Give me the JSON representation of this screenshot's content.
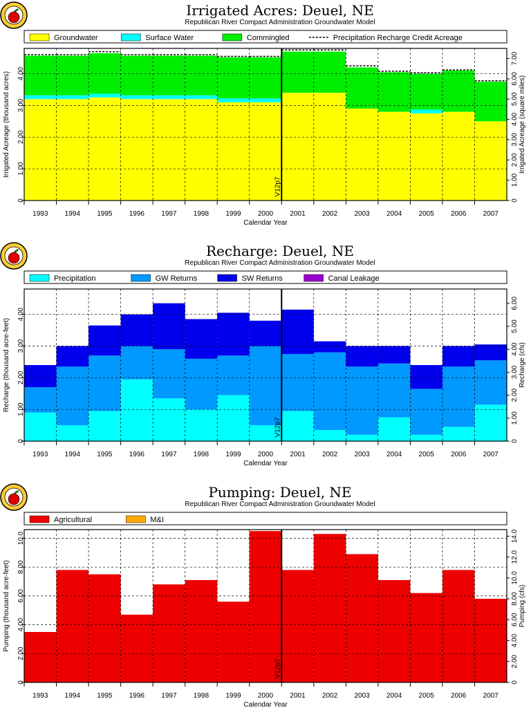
{
  "chart_data": [
    {
      "type": "bar",
      "title": "Irrigated Acres: Deuel, NE",
      "subtitle": "Republican River Compact Administration Groundwater Model",
      "xlabel": "Calendar Year",
      "ylabel": "Irrigated Acreage (thousand acres)",
      "y2label": "Irrigated Acreage (square miles)",
      "categories": [
        "1993",
        "1994",
        "1995",
        "1996",
        "1997",
        "1998",
        "1999",
        "2000",
        "2001",
        "2002",
        "2003",
        "2004",
        "2005",
        "2006",
        "2007"
      ],
      "stacked": true,
      "ylim": [
        0,
        4.8
      ],
      "yticks": [
        0,
        1.0,
        2.0,
        3.0,
        4.0
      ],
      "y2ticks": [
        0,
        1.0,
        2.0,
        3.0,
        4.0,
        5.0,
        6.0,
        7.0
      ],
      "y2scale": 1.5625,
      "series": [
        {
          "name": "Groundwater",
          "color": "#ffff00",
          "values": [
            3.2,
            3.2,
            3.25,
            3.2,
            3.2,
            3.2,
            3.1,
            3.1,
            3.4,
            3.4,
            2.9,
            2.8,
            2.75,
            2.8,
            2.5
          ]
        },
        {
          "name": "Surface Water",
          "color": "#00ffff",
          "values": [
            0.12,
            0.12,
            0.12,
            0.12,
            0.12,
            0.12,
            0.12,
            0.12,
            0.0,
            0.0,
            0.0,
            0.0,
            0.12,
            0.0,
            0.0
          ]
        },
        {
          "name": "Commingled",
          "color": "#00ee00",
          "values": [
            1.25,
            1.25,
            1.28,
            1.25,
            1.25,
            1.25,
            1.3,
            1.3,
            1.3,
            1.3,
            1.3,
            1.25,
            1.13,
            1.3,
            1.25
          ]
        }
      ],
      "line": {
        "name": "Precipitation Recharge Credit Acreage",
        "values": [
          4.6,
          4.6,
          4.7,
          4.6,
          4.6,
          4.6,
          4.55,
          4.55,
          4.75,
          4.75,
          4.25,
          4.08,
          4.03,
          4.12,
          3.78
        ]
      },
      "marker": "V12p7",
      "marker_year": "2000"
    },
    {
      "type": "bar",
      "title": "Recharge: Deuel, NE",
      "subtitle": "Republican River Compact Administration Groundwater Model",
      "xlabel": "Calendar Year",
      "ylabel": "Recharge (thousand acre-feet)",
      "y2label": "Recharge (cfs)",
      "categories": [
        "1993",
        "1994",
        "1995",
        "1996",
        "1997",
        "1998",
        "1999",
        "2000",
        "2001",
        "2002",
        "2003",
        "2004",
        "2005",
        "2006",
        "2007"
      ],
      "stacked": true,
      "ylim": [
        0,
        4.8
      ],
      "yticks": [
        0,
        1.0,
        2.0,
        3.0,
        4.0
      ],
      "y2ticks": [
        0,
        1.0,
        2.0,
        3.0,
        4.0,
        5.0,
        6.0
      ],
      "y2scale": 1.38,
      "series": [
        {
          "name": "Precipitation",
          "color": "#00ffff",
          "values": [
            0.9,
            0.5,
            0.95,
            1.95,
            1.35,
            1.0,
            1.45,
            0.5,
            0.95,
            0.35,
            0.2,
            0.75,
            0.2,
            0.45,
            1.15
          ]
        },
        {
          "name": "GW Returns",
          "color": "#0099ff",
          "values": [
            0.8,
            1.85,
            1.75,
            1.05,
            1.55,
            1.6,
            1.25,
            2.5,
            1.8,
            2.45,
            2.15,
            1.7,
            1.45,
            1.9,
            1.4
          ]
        },
        {
          "name": "SW Returns",
          "color": "#0000ee",
          "values": [
            0.7,
            0.65,
            0.95,
            1.0,
            1.45,
            1.25,
            1.35,
            0.8,
            1.4,
            0.35,
            0.65,
            0.55,
            0.75,
            0.65,
            0.5
          ]
        },
        {
          "name": "Canal Leakage",
          "color": "#9900cc",
          "values": [
            0,
            0,
            0,
            0,
            0,
            0,
            0,
            0,
            0,
            0,
            0,
            0,
            0,
            0,
            0
          ]
        }
      ],
      "marker": "V12p7",
      "marker_year": "2000"
    },
    {
      "type": "bar",
      "title": "Pumping: Deuel, NE",
      "subtitle": "Republican River Compact Administration Groundwater Model",
      "xlabel": "Calendar Year",
      "ylabel": "Pumping (thousand acre-feet)",
      "y2label": "Pumping (cfs)",
      "categories": [
        "1993",
        "1994",
        "1995",
        "1996",
        "1997",
        "1998",
        "1999",
        "2000",
        "2001",
        "2002",
        "2003",
        "2004",
        "2005",
        "2006",
        "2007"
      ],
      "stacked": true,
      "ylim": [
        0,
        10.6
      ],
      "yticks": [
        0,
        2.0,
        4.0,
        6.0,
        8.0,
        10.0
      ],
      "y2ticks": [
        0,
        2.0,
        4.0,
        6.0,
        8.0,
        10.0,
        12.0,
        14.0
      ],
      "y2scale": 1.38,
      "series": [
        {
          "name": "Agricultural",
          "color": "#ee0000",
          "values": [
            3.5,
            7.8,
            7.5,
            4.7,
            6.8,
            7.1,
            5.6,
            10.5,
            7.8,
            10.3,
            8.9,
            7.1,
            6.2,
            7.8,
            5.8
          ]
        },
        {
          "name": "M&I",
          "color": "#ffaa00",
          "values": [
            0,
            0,
            0,
            0,
            0,
            0,
            0,
            0,
            0,
            0,
            0,
            0,
            0,
            0,
            0
          ]
        }
      ],
      "marker": "V12p7",
      "marker_year": "2000"
    }
  ]
}
